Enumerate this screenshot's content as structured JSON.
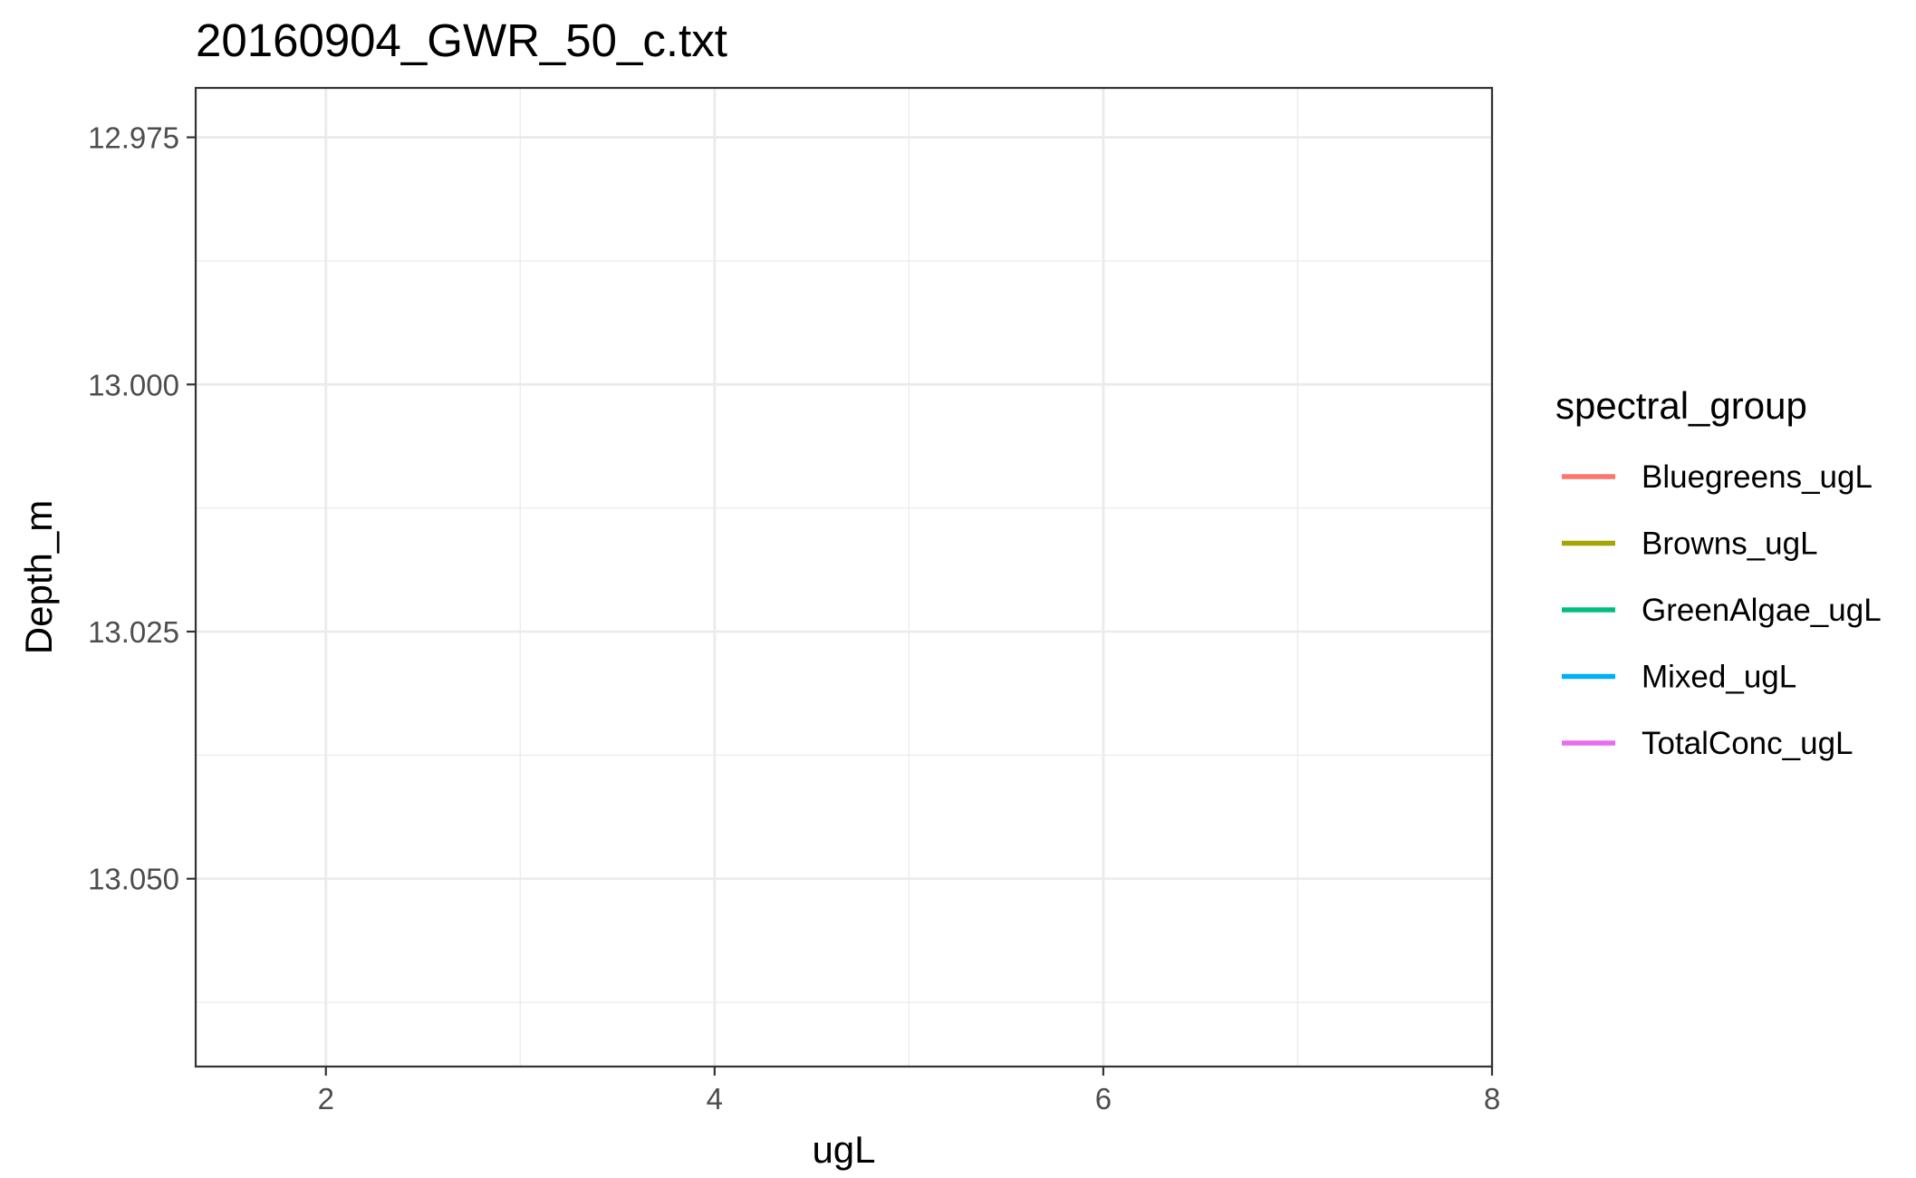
{
  "chart_data": {
    "type": "line",
    "title": "20160904_GWR_50_c.txt",
    "xlabel": "ugL",
    "ylabel": "Depth_m",
    "xlim": [
      1.33,
      8.0
    ],
    "ylim": [
      12.97,
      13.069
    ],
    "y_reversed": true,
    "x_ticks": [
      2,
      4,
      6,
      8
    ],
    "x_tick_labels": [
      "2",
      "4",
      "6",
      "8"
    ],
    "x_minor_ticks": [
      3,
      5,
      7
    ],
    "y_ticks": [
      12.975,
      13.0,
      13.025,
      13.05
    ],
    "y_tick_labels": [
      "12.975",
      "13.000",
      "13.025",
      "13.050"
    ],
    "y_minor_ticks": [
      12.9875,
      13.0125,
      13.0375,
      13.0625
    ],
    "grid": true,
    "legend": {
      "title": "spectral_group",
      "placement": "right"
    },
    "series": [
      {
        "name": "Bluegreens_ugL",
        "color": "#F8766D",
        "points": []
      },
      {
        "name": "Browns_ugL",
        "color": "#A3A500",
        "points": []
      },
      {
        "name": "GreenAlgae_ugL",
        "color": "#00BF7D",
        "points": []
      },
      {
        "name": "Mixed_ugL",
        "color": "#00B0F6",
        "points": []
      },
      {
        "name": "TotalConc_ugL",
        "color": "#E76BF3",
        "points": []
      }
    ]
  }
}
